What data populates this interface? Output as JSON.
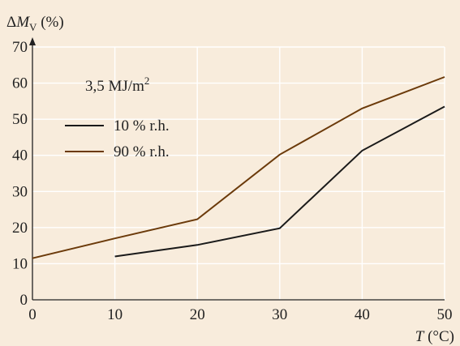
{
  "chart_data": {
    "type": "line",
    "ylabel": "ΔM_V (%)",
    "xlabel": "T (°C)",
    "annotation": "3,5 MJ/m²",
    "xlim": [
      0,
      50
    ],
    "ylim": [
      0,
      70
    ],
    "x_ticks": [
      0,
      10,
      20,
      30,
      40,
      50
    ],
    "y_ticks": [
      0,
      10,
      20,
      30,
      40,
      50,
      60,
      70
    ],
    "grid": true,
    "legend_position": "upper-left",
    "series": [
      {
        "name": "10 % r.h.",
        "color": "#1a1a1a",
        "x": [
          10,
          20,
          30,
          40,
          50
        ],
        "y": [
          12,
          15.2,
          19.8,
          41.3,
          53.5
        ]
      },
      {
        "name": "90 % r.h.",
        "color": "#6b3a0a",
        "x": [
          0,
          10,
          20,
          30,
          40,
          50
        ],
        "y": [
          11.5,
          17,
          22.3,
          40.2,
          53,
          61.7
        ]
      }
    ]
  }
}
